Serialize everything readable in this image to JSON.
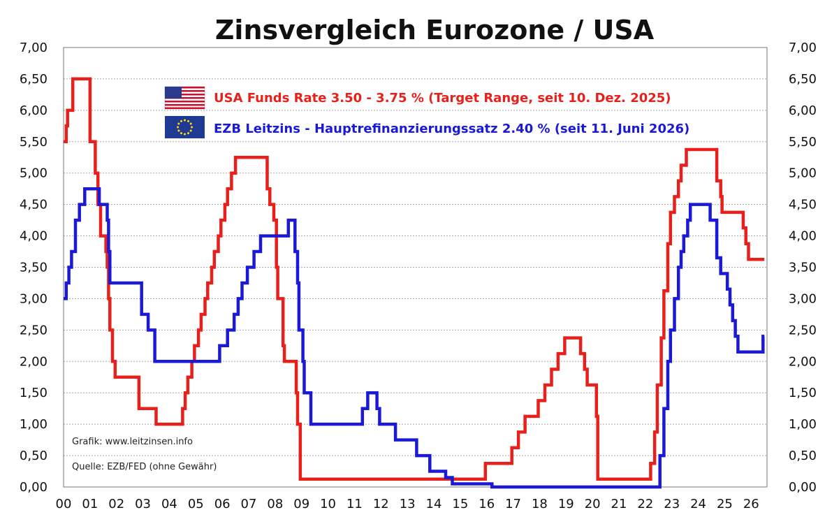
{
  "chart_data": {
    "type": "line",
    "title": "Zinsvergleich Eurozone / USA",
    "xlabel": "",
    "ylabel": "",
    "xlim": [
      2000,
      2026.6
    ],
    "ylim": [
      0,
      7
    ],
    "grid": true,
    "y_ticks": [
      "0,00",
      "0,50",
      "1,00",
      "1,50",
      "2,00",
      "2,50",
      "3,00",
      "3,50",
      "4,00",
      "4,50",
      "5,00",
      "5,50",
      "6,00",
      "6,50",
      "7,00"
    ],
    "x_ticks": [
      "00",
      "01",
      "02",
      "03",
      "04",
      "05",
      "06",
      "07",
      "08",
      "09",
      "10",
      "11",
      "12",
      "13",
      "14",
      "15",
      "16",
      "17",
      "18",
      "19",
      "20",
      "21",
      "22",
      "23",
      "24",
      "25",
      "26"
    ],
    "legend": {
      "position": "top-center",
      "entries": [
        "USA Funds Rate 3.50 - 3.75 % (Target Range, seit 10. Dez. 2025)",
        "EZB Leitzins - Hauptrefinanzierungssatz 2.40 % (seit 11. Juni 2026)"
      ]
    },
    "annotations": [
      "Grafik: www.leitzinsen.info",
      "Quelle: EZB/FED (ohne Gewähr)"
    ],
    "series": [
      {
        "color": "#e8201c",
        "flag": "us-flag-icon",
        "points": [
          [
            2000.0,
            5.5
          ],
          [
            2000.1,
            5.75
          ],
          [
            2000.15,
            6.0
          ],
          [
            2000.35,
            6.5
          ],
          [
            2001.0,
            5.5
          ],
          [
            2001.2,
            5.0
          ],
          [
            2001.3,
            4.5
          ],
          [
            2001.4,
            4.0
          ],
          [
            2001.6,
            3.75
          ],
          [
            2001.65,
            3.5
          ],
          [
            2001.7,
            3.0
          ],
          [
            2001.75,
            2.5
          ],
          [
            2001.85,
            2.0
          ],
          [
            2001.95,
            1.75
          ],
          [
            2002.85,
            1.25
          ],
          [
            2003.5,
            1.0
          ],
          [
            2004.5,
            1.25
          ],
          [
            2004.6,
            1.5
          ],
          [
            2004.7,
            1.75
          ],
          [
            2004.85,
            2.0
          ],
          [
            2004.95,
            2.25
          ],
          [
            2005.1,
            2.5
          ],
          [
            2005.2,
            2.75
          ],
          [
            2005.35,
            3.0
          ],
          [
            2005.45,
            3.25
          ],
          [
            2005.6,
            3.5
          ],
          [
            2005.7,
            3.75
          ],
          [
            2005.85,
            4.0
          ],
          [
            2005.95,
            4.25
          ],
          [
            2006.1,
            4.5
          ],
          [
            2006.2,
            4.75
          ],
          [
            2006.35,
            5.0
          ],
          [
            2006.5,
            5.25
          ],
          [
            2007.7,
            4.75
          ],
          [
            2007.8,
            4.5
          ],
          [
            2007.95,
            4.25
          ],
          [
            2008.05,
            3.5
          ],
          [
            2008.1,
            3.0
          ],
          [
            2008.3,
            2.25
          ],
          [
            2008.35,
            2.0
          ],
          [
            2008.8,
            1.5
          ],
          [
            2008.85,
            1.0
          ],
          [
            2008.95,
            0.125
          ],
          [
            2015.95,
            0.375
          ],
          [
            2016.95,
            0.625
          ],
          [
            2017.2,
            0.875
          ],
          [
            2017.45,
            1.125
          ],
          [
            2017.95,
            1.375
          ],
          [
            2018.2,
            1.625
          ],
          [
            2018.45,
            1.875
          ],
          [
            2018.7,
            2.125
          ],
          [
            2018.95,
            2.375
          ],
          [
            2019.55,
            2.125
          ],
          [
            2019.7,
            1.875
          ],
          [
            2019.8,
            1.625
          ],
          [
            2020.15,
            1.125
          ],
          [
            2020.2,
            0.125
          ],
          [
            2022.2,
            0.375
          ],
          [
            2022.35,
            0.875
          ],
          [
            2022.45,
            1.625
          ],
          [
            2022.6,
            2.375
          ],
          [
            2022.7,
            3.125
          ],
          [
            2022.85,
            3.875
          ],
          [
            2022.95,
            4.375
          ],
          [
            2023.1,
            4.625
          ],
          [
            2023.25,
            4.875
          ],
          [
            2023.35,
            5.125
          ],
          [
            2023.55,
            5.375
          ],
          [
            2024.7,
            4.875
          ],
          [
            2024.85,
            4.625
          ],
          [
            2024.9,
            4.375
          ],
          [
            2025.7,
            4.125
          ],
          [
            2025.8,
            3.875
          ],
          [
            2025.9,
            3.625
          ],
          [
            2026.5,
            3.625
          ]
        ]
      },
      {
        "color": "#1a1ad6",
        "flag": "eu-flag-icon",
        "points": [
          [
            2000.0,
            3.0
          ],
          [
            2000.1,
            3.25
          ],
          [
            2000.2,
            3.5
          ],
          [
            2000.3,
            3.75
          ],
          [
            2000.45,
            4.25
          ],
          [
            2000.6,
            4.5
          ],
          [
            2000.8,
            4.75
          ],
          [
            2001.35,
            4.5
          ],
          [
            2001.65,
            4.25
          ],
          [
            2001.7,
            3.75
          ],
          [
            2001.75,
            3.25
          ],
          [
            2002.95,
            2.75
          ],
          [
            2003.2,
            2.5
          ],
          [
            2003.45,
            2.0
          ],
          [
            2005.9,
            2.25
          ],
          [
            2006.2,
            2.5
          ],
          [
            2006.45,
            2.75
          ],
          [
            2006.6,
            3.0
          ],
          [
            2006.75,
            3.25
          ],
          [
            2006.95,
            3.5
          ],
          [
            2007.2,
            3.75
          ],
          [
            2007.45,
            4.0
          ],
          [
            2008.5,
            4.25
          ],
          [
            2008.75,
            3.75
          ],
          [
            2008.85,
            3.25
          ],
          [
            2008.9,
            2.5
          ],
          [
            2009.05,
            2.0
          ],
          [
            2009.1,
            1.5
          ],
          [
            2009.35,
            1.0
          ],
          [
            2011.3,
            1.25
          ],
          [
            2011.5,
            1.5
          ],
          [
            2011.85,
            1.25
          ],
          [
            2011.95,
            1.0
          ],
          [
            2012.55,
            0.75
          ],
          [
            2013.35,
            0.5
          ],
          [
            2013.85,
            0.25
          ],
          [
            2014.45,
            0.15
          ],
          [
            2014.7,
            0.05
          ],
          [
            2016.2,
            0.0
          ],
          [
            2022.55,
            0.5
          ],
          [
            2022.7,
            1.25
          ],
          [
            2022.85,
            2.0
          ],
          [
            2022.95,
            2.5
          ],
          [
            2023.1,
            3.0
          ],
          [
            2023.25,
            3.5
          ],
          [
            2023.35,
            3.75
          ],
          [
            2023.45,
            4.0
          ],
          [
            2023.6,
            4.25
          ],
          [
            2023.7,
            4.5
          ],
          [
            2024.45,
            4.25
          ],
          [
            2024.7,
            3.65
          ],
          [
            2024.85,
            3.4
          ],
          [
            2025.1,
            3.15
          ],
          [
            2025.2,
            2.9
          ],
          [
            2025.3,
            2.65
          ],
          [
            2025.4,
            2.4
          ],
          [
            2025.5,
            2.15
          ],
          [
            2026.45,
            2.4
          ],
          [
            2026.5,
            2.4
          ]
        ]
      }
    ]
  }
}
